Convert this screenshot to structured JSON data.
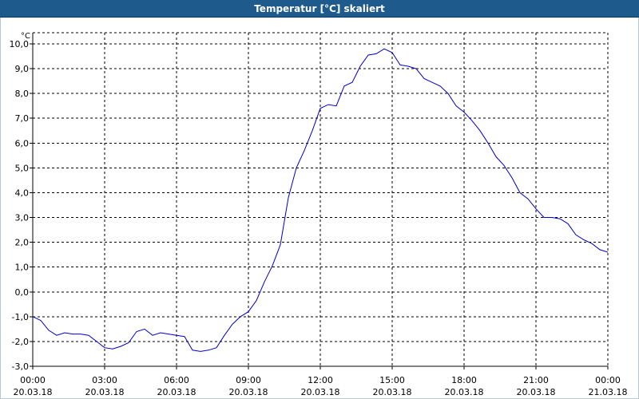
{
  "window": {
    "title": "Temperatur [°C] skaliert"
  },
  "chart_data": {
    "type": "line",
    "title": "Temperatur [°C] skaliert",
    "ylabel": "°C",
    "xlabel": "",
    "ylim": [
      -3,
      10
    ],
    "xlim_hours": [
      0,
      24
    ],
    "yticks": [
      "-3,0",
      "-2,0",
      "-1,0",
      "0,0",
      "1,0",
      "2,0",
      "3,0",
      "4,0",
      "5,0",
      "6,0",
      "7,0",
      "8,0",
      "9,0",
      "10,0"
    ],
    "xticks": [
      {
        "time": "00:00",
        "date": "20.03.18"
      },
      {
        "time": "03:00",
        "date": "20.03.18"
      },
      {
        "time": "06:00",
        "date": "20.03.18"
      },
      {
        "time": "09:00",
        "date": "20.03.18"
      },
      {
        "time": "12:00",
        "date": "20.03.18"
      },
      {
        "time": "15:00",
        "date": "20.03.18"
      },
      {
        "time": "18:00",
        "date": "20.03.18"
      },
      {
        "time": "21:00",
        "date": "20.03.18"
      },
      {
        "time": "00:00",
        "date": "21.03.18"
      }
    ],
    "grid": true,
    "grid_style": "dashed",
    "series": [
      {
        "color": "#0000cc",
        "x": [
          "00:00",
          "00:20",
          "00:40",
          "01:00",
          "01:20",
          "01:40",
          "02:00",
          "02:20",
          "02:40",
          "03:00",
          "03:20",
          "03:40",
          "04:00",
          "04:20",
          "04:40",
          "05:00",
          "05:20",
          "05:40",
          "06:00",
          "06:20",
          "06:40",
          "07:00",
          "07:20",
          "07:40",
          "08:00",
          "08:20",
          "08:40",
          "09:00",
          "09:20",
          "09:40",
          "10:00",
          "10:20",
          "10:40",
          "11:00",
          "11:20",
          "11:40",
          "12:00",
          "12:20",
          "12:40",
          "13:00",
          "13:20",
          "13:40",
          "14:00",
          "14:20",
          "14:40",
          "15:00",
          "15:20",
          "15:40",
          "16:00",
          "16:20",
          "16:40",
          "17:00",
          "17:20",
          "17:40",
          "18:00",
          "18:20",
          "18:40",
          "19:00",
          "19:20",
          "19:40",
          "20:00",
          "20:20",
          "20:40",
          "21:00",
          "21:20",
          "21:40",
          "22:00",
          "22:20",
          "22:40",
          "23:00",
          "23:20",
          "23:40",
          "24:00"
        ],
        "y": [
          -1.0,
          -1.15,
          -1.55,
          -1.75,
          -1.65,
          -1.7,
          -1.7,
          -1.75,
          -2.0,
          -2.25,
          -2.3,
          -2.2,
          -2.05,
          -1.6,
          -1.5,
          -1.75,
          -1.65,
          -1.7,
          -1.75,
          -1.8,
          -2.35,
          -2.4,
          -2.35,
          -2.25,
          -1.75,
          -1.3,
          -1.0,
          -0.8,
          -0.35,
          0.4,
          1.05,
          1.9,
          3.8,
          5.0,
          5.7,
          6.5,
          7.4,
          7.55,
          7.5,
          8.3,
          8.45,
          9.1,
          9.55,
          9.6,
          9.8,
          9.65,
          9.15,
          9.1,
          9.0,
          8.6,
          8.45,
          8.3,
          8.0,
          7.5,
          7.25,
          6.9,
          6.5,
          6.0,
          5.45,
          5.1,
          4.6,
          4.0,
          3.75,
          3.35,
          3.0,
          3.0,
          2.95,
          2.75,
          2.3,
          2.1,
          1.95,
          1.7,
          1.6
        ]
      }
    ]
  }
}
